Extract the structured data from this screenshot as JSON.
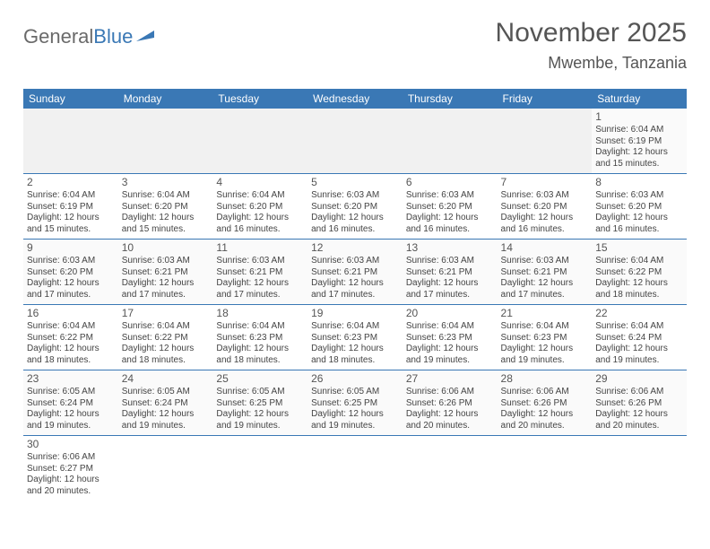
{
  "logo": {
    "part1": "General",
    "part2": "Blue"
  },
  "title": "November 2025",
  "location": "Mwembe, Tanzania",
  "colors": {
    "header_bg": "#3a78b5",
    "header_text": "#ffffff",
    "row_border": "#3a78b5",
    "text": "#444444",
    "page_bg": "#ffffff",
    "empty_bg": "#f1f1f1"
  },
  "day_headers": [
    "Sunday",
    "Monday",
    "Tuesday",
    "Wednesday",
    "Thursday",
    "Friday",
    "Saturday"
  ],
  "weeks": [
    [
      null,
      null,
      null,
      null,
      null,
      null,
      {
        "n": "1",
        "sr": "Sunrise: 6:04 AM",
        "ss": "Sunset: 6:19 PM",
        "dl1": "Daylight: 12 hours",
        "dl2": "and 15 minutes."
      }
    ],
    [
      {
        "n": "2",
        "sr": "Sunrise: 6:04 AM",
        "ss": "Sunset: 6:19 PM",
        "dl1": "Daylight: 12 hours",
        "dl2": "and 15 minutes."
      },
      {
        "n": "3",
        "sr": "Sunrise: 6:04 AM",
        "ss": "Sunset: 6:20 PM",
        "dl1": "Daylight: 12 hours",
        "dl2": "and 15 minutes."
      },
      {
        "n": "4",
        "sr": "Sunrise: 6:04 AM",
        "ss": "Sunset: 6:20 PM",
        "dl1": "Daylight: 12 hours",
        "dl2": "and 16 minutes."
      },
      {
        "n": "5",
        "sr": "Sunrise: 6:03 AM",
        "ss": "Sunset: 6:20 PM",
        "dl1": "Daylight: 12 hours",
        "dl2": "and 16 minutes."
      },
      {
        "n": "6",
        "sr": "Sunrise: 6:03 AM",
        "ss": "Sunset: 6:20 PM",
        "dl1": "Daylight: 12 hours",
        "dl2": "and 16 minutes."
      },
      {
        "n": "7",
        "sr": "Sunrise: 6:03 AM",
        "ss": "Sunset: 6:20 PM",
        "dl1": "Daylight: 12 hours",
        "dl2": "and 16 minutes."
      },
      {
        "n": "8",
        "sr": "Sunrise: 6:03 AM",
        "ss": "Sunset: 6:20 PM",
        "dl1": "Daylight: 12 hours",
        "dl2": "and 16 minutes."
      }
    ],
    [
      {
        "n": "9",
        "sr": "Sunrise: 6:03 AM",
        "ss": "Sunset: 6:20 PM",
        "dl1": "Daylight: 12 hours",
        "dl2": "and 17 minutes."
      },
      {
        "n": "10",
        "sr": "Sunrise: 6:03 AM",
        "ss": "Sunset: 6:21 PM",
        "dl1": "Daylight: 12 hours",
        "dl2": "and 17 minutes."
      },
      {
        "n": "11",
        "sr": "Sunrise: 6:03 AM",
        "ss": "Sunset: 6:21 PM",
        "dl1": "Daylight: 12 hours",
        "dl2": "and 17 minutes."
      },
      {
        "n": "12",
        "sr": "Sunrise: 6:03 AM",
        "ss": "Sunset: 6:21 PM",
        "dl1": "Daylight: 12 hours",
        "dl2": "and 17 minutes."
      },
      {
        "n": "13",
        "sr": "Sunrise: 6:03 AM",
        "ss": "Sunset: 6:21 PM",
        "dl1": "Daylight: 12 hours",
        "dl2": "and 17 minutes."
      },
      {
        "n": "14",
        "sr": "Sunrise: 6:03 AM",
        "ss": "Sunset: 6:21 PM",
        "dl1": "Daylight: 12 hours",
        "dl2": "and 17 minutes."
      },
      {
        "n": "15",
        "sr": "Sunrise: 6:04 AM",
        "ss": "Sunset: 6:22 PM",
        "dl1": "Daylight: 12 hours",
        "dl2": "and 18 minutes."
      }
    ],
    [
      {
        "n": "16",
        "sr": "Sunrise: 6:04 AM",
        "ss": "Sunset: 6:22 PM",
        "dl1": "Daylight: 12 hours",
        "dl2": "and 18 minutes."
      },
      {
        "n": "17",
        "sr": "Sunrise: 6:04 AM",
        "ss": "Sunset: 6:22 PM",
        "dl1": "Daylight: 12 hours",
        "dl2": "and 18 minutes."
      },
      {
        "n": "18",
        "sr": "Sunrise: 6:04 AM",
        "ss": "Sunset: 6:23 PM",
        "dl1": "Daylight: 12 hours",
        "dl2": "and 18 minutes."
      },
      {
        "n": "19",
        "sr": "Sunrise: 6:04 AM",
        "ss": "Sunset: 6:23 PM",
        "dl1": "Daylight: 12 hours",
        "dl2": "and 18 minutes."
      },
      {
        "n": "20",
        "sr": "Sunrise: 6:04 AM",
        "ss": "Sunset: 6:23 PM",
        "dl1": "Daylight: 12 hours",
        "dl2": "and 19 minutes."
      },
      {
        "n": "21",
        "sr": "Sunrise: 6:04 AM",
        "ss": "Sunset: 6:23 PM",
        "dl1": "Daylight: 12 hours",
        "dl2": "and 19 minutes."
      },
      {
        "n": "22",
        "sr": "Sunrise: 6:04 AM",
        "ss": "Sunset: 6:24 PM",
        "dl1": "Daylight: 12 hours",
        "dl2": "and 19 minutes."
      }
    ],
    [
      {
        "n": "23",
        "sr": "Sunrise: 6:05 AM",
        "ss": "Sunset: 6:24 PM",
        "dl1": "Daylight: 12 hours",
        "dl2": "and 19 minutes."
      },
      {
        "n": "24",
        "sr": "Sunrise: 6:05 AM",
        "ss": "Sunset: 6:24 PM",
        "dl1": "Daylight: 12 hours",
        "dl2": "and 19 minutes."
      },
      {
        "n": "25",
        "sr": "Sunrise: 6:05 AM",
        "ss": "Sunset: 6:25 PM",
        "dl1": "Daylight: 12 hours",
        "dl2": "and 19 minutes."
      },
      {
        "n": "26",
        "sr": "Sunrise: 6:05 AM",
        "ss": "Sunset: 6:25 PM",
        "dl1": "Daylight: 12 hours",
        "dl2": "and 19 minutes."
      },
      {
        "n": "27",
        "sr": "Sunrise: 6:06 AM",
        "ss": "Sunset: 6:26 PM",
        "dl1": "Daylight: 12 hours",
        "dl2": "and 20 minutes."
      },
      {
        "n": "28",
        "sr": "Sunrise: 6:06 AM",
        "ss": "Sunset: 6:26 PM",
        "dl1": "Daylight: 12 hours",
        "dl2": "and 20 minutes."
      },
      {
        "n": "29",
        "sr": "Sunrise: 6:06 AM",
        "ss": "Sunset: 6:26 PM",
        "dl1": "Daylight: 12 hours",
        "dl2": "and 20 minutes."
      }
    ],
    [
      {
        "n": "30",
        "sr": "Sunrise: 6:06 AM",
        "ss": "Sunset: 6:27 PM",
        "dl1": "Daylight: 12 hours",
        "dl2": "and 20 minutes."
      },
      null,
      null,
      null,
      null,
      null,
      null
    ]
  ]
}
